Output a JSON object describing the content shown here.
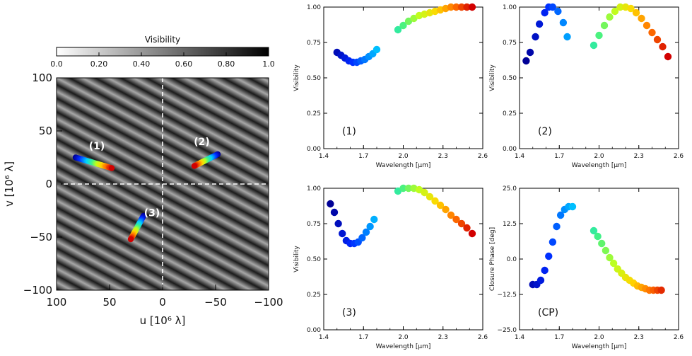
{
  "colorbar": {
    "title": "Visibility",
    "ticks": [
      "0.0",
      "0.20",
      "0.40",
      "0.60",
      "0.80",
      "1.0"
    ],
    "tick_values": [
      0.0,
      0.2,
      0.4,
      0.6,
      0.8,
      1.0
    ]
  },
  "uv_plot": {
    "xlabel": "u [10⁶ λ]",
    "ylabel": "v [10⁶ λ]",
    "xlim": [
      100,
      -100
    ],
    "ylim": [
      -100,
      100
    ],
    "xticks": [
      100,
      50,
      0,
      -50,
      -100
    ],
    "xtick_labels": [
      "100",
      "50",
      "0",
      "−50",
      "−100"
    ],
    "yticks": [
      100,
      50,
      0,
      -50,
      -100
    ],
    "ytick_labels": [
      "100",
      "50",
      "0",
      "−50",
      "−100"
    ],
    "tracks": [
      {
        "label": "(1)",
        "u_start": 82,
        "v_start": 25,
        "u_end": 48,
        "v_end": 15,
        "label_u": 62,
        "label_v": 36
      },
      {
        "label": "(2)",
        "u_start": -52,
        "v_start": 28,
        "u_end": -30,
        "v_end": 17,
        "label_u": -37,
        "label_v": 40
      },
      {
        "label": "(3)",
        "u_start": 18,
        "v_start": -30,
        "u_end": 30,
        "v_end": -52,
        "label_u": 10,
        "label_v": -27
      }
    ]
  },
  "chart_data": [
    {
      "type": "scatter",
      "label": "(1)",
      "xlabel": "Wavelength [μm]",
      "ylabel": "Visibility",
      "xlim": [
        1.4,
        2.6
      ],
      "ylim": [
        0.0,
        1.0
      ],
      "xticks": [
        "1.4",
        "1.7",
        "2.0",
        "2.3",
        "2.6"
      ],
      "yticks": [
        "0.00",
        "0.25",
        "0.50",
        "0.75",
        "1.00"
      ],
      "x": [
        1.5,
        1.53,
        1.56,
        1.59,
        1.62,
        1.65,
        1.68,
        1.71,
        1.74,
        1.77,
        1.8,
        1.96,
        2.0,
        2.04,
        2.08,
        2.12,
        2.16,
        2.2,
        2.24,
        2.28,
        2.32,
        2.36,
        2.4,
        2.44,
        2.48,
        2.52
      ],
      "y": [
        0.68,
        0.66,
        0.64,
        0.62,
        0.61,
        0.61,
        0.62,
        0.63,
        0.65,
        0.67,
        0.7,
        0.84,
        0.87,
        0.9,
        0.92,
        0.94,
        0.95,
        0.96,
        0.97,
        0.98,
        0.99,
        1.0,
        1.0,
        1.0,
        1.0,
        1.0
      ]
    },
    {
      "type": "scatter",
      "label": "(2)",
      "xlabel": "Wavelength [μm]",
      "ylabel": "Visibility",
      "xlim": [
        1.4,
        2.6
      ],
      "ylim": [
        0.0,
        1.0
      ],
      "xticks": [
        "1.4",
        "1.7",
        "2.0",
        "2.3",
        "2.6"
      ],
      "yticks": [
        "0.00",
        "0.25",
        "0.50",
        "0.75",
        "1.00"
      ],
      "x": [
        1.45,
        1.48,
        1.52,
        1.55,
        1.59,
        1.62,
        1.65,
        1.69,
        1.73,
        1.76,
        1.96,
        2.0,
        2.04,
        2.08,
        2.12,
        2.16,
        2.2,
        2.24,
        2.28,
        2.32,
        2.36,
        2.4,
        2.44,
        2.48,
        2.52
      ],
      "y": [
        0.62,
        0.68,
        0.79,
        0.88,
        0.96,
        1.0,
        1.0,
        0.97,
        0.89,
        0.79,
        0.73,
        0.8,
        0.87,
        0.93,
        0.97,
        1.0,
        1.0,
        0.99,
        0.96,
        0.92,
        0.87,
        0.82,
        0.77,
        0.72,
        0.65
      ]
    },
    {
      "type": "scatter",
      "label": "(3)",
      "xlabel": "Wavelength [μm]",
      "ylabel": "Visibility",
      "xlim": [
        1.4,
        2.6
      ],
      "ylim": [
        0.0,
        1.0
      ],
      "xticks": [
        "1.4",
        "1.7",
        "2.0",
        "2.3",
        "2.6"
      ],
      "yticks": [
        "0.00",
        "0.25",
        "0.50",
        "0.75",
        "1.00"
      ],
      "x": [
        1.45,
        1.48,
        1.51,
        1.54,
        1.57,
        1.6,
        1.63,
        1.66,
        1.69,
        1.72,
        1.75,
        1.78,
        1.96,
        2.0,
        2.04,
        2.08,
        2.12,
        2.16,
        2.2,
        2.24,
        2.28,
        2.32,
        2.36,
        2.4,
        2.44,
        2.48,
        2.52
      ],
      "y": [
        0.89,
        0.83,
        0.75,
        0.68,
        0.63,
        0.61,
        0.61,
        0.62,
        0.65,
        0.69,
        0.73,
        0.78,
        0.98,
        1.0,
        1.0,
        1.0,
        0.99,
        0.97,
        0.94,
        0.91,
        0.88,
        0.85,
        0.81,
        0.78,
        0.75,
        0.72,
        0.68
      ]
    },
    {
      "type": "scatter",
      "label": "(CP)",
      "xlabel": "Wavelength [μm]",
      "ylabel": "Closure Phase [deg]",
      "xlim": [
        1.4,
        2.6
      ],
      "ylim": [
        -25,
        25
      ],
      "xticks": [
        "1.4",
        "1.7",
        "2.0",
        "2.3",
        "2.6"
      ],
      "yticks": [
        "−25.0",
        "−12.5",
        "0.0",
        "12.5",
        "25.0"
      ],
      "ytick_values": [
        -25,
        -12.5,
        0,
        12.5,
        25
      ],
      "x": [
        1.5,
        1.53,
        1.56,
        1.59,
        1.62,
        1.65,
        1.68,
        1.71,
        1.74,
        1.77,
        1.8,
        1.96,
        1.99,
        2.02,
        2.05,
        2.08,
        2.11,
        2.14,
        2.17,
        2.2,
        2.23,
        2.26,
        2.29,
        2.32,
        2.35,
        2.38,
        2.41,
        2.44,
        2.47
      ],
      "y": [
        -9,
        -9,
        -7.5,
        -4,
        1,
        6,
        11.5,
        15.5,
        17.5,
        18.5,
        18.5,
        10,
        8,
        5.5,
        3,
        0.5,
        -1.5,
        -3.5,
        -5,
        -6.5,
        -7.5,
        -8.5,
        -9.5,
        -10,
        -10.5,
        -11,
        -11,
        -11,
        -11
      ]
    }
  ]
}
